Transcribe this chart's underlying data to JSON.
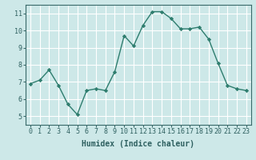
{
  "x": [
    0,
    1,
    2,
    3,
    4,
    5,
    6,
    7,
    8,
    9,
    10,
    11,
    12,
    13,
    14,
    15,
    16,
    17,
    18,
    19,
    20,
    21,
    22,
    23
  ],
  "y": [
    6.9,
    7.1,
    7.7,
    6.8,
    5.7,
    5.1,
    6.5,
    6.6,
    6.5,
    7.6,
    9.7,
    9.1,
    10.3,
    11.1,
    11.1,
    10.7,
    10.1,
    10.1,
    10.2,
    9.5,
    8.1,
    6.8,
    6.6,
    6.5
  ],
  "line_color": "#2e7d6e",
  "marker": "D",
  "marker_size": 2.2,
  "line_width": 1.0,
  "xlabel": "Humidex (Indice chaleur)",
  "xlim": [
    -0.5,
    23.5
  ],
  "ylim": [
    4.5,
    11.5
  ],
  "yticks": [
    5,
    6,
    7,
    8,
    9,
    10,
    11
  ],
  "xticks": [
    0,
    1,
    2,
    3,
    4,
    5,
    6,
    7,
    8,
    9,
    10,
    11,
    12,
    13,
    14,
    15,
    16,
    17,
    18,
    19,
    20,
    21,
    22,
    23
  ],
  "bg_color": "#cde8e8",
  "grid_color": "#ffffff",
  "spine_color": "#3a6a6a",
  "xlabel_fontsize": 7.0,
  "tick_fontsize": 6.0,
  "tick_color": "#2e6060"
}
